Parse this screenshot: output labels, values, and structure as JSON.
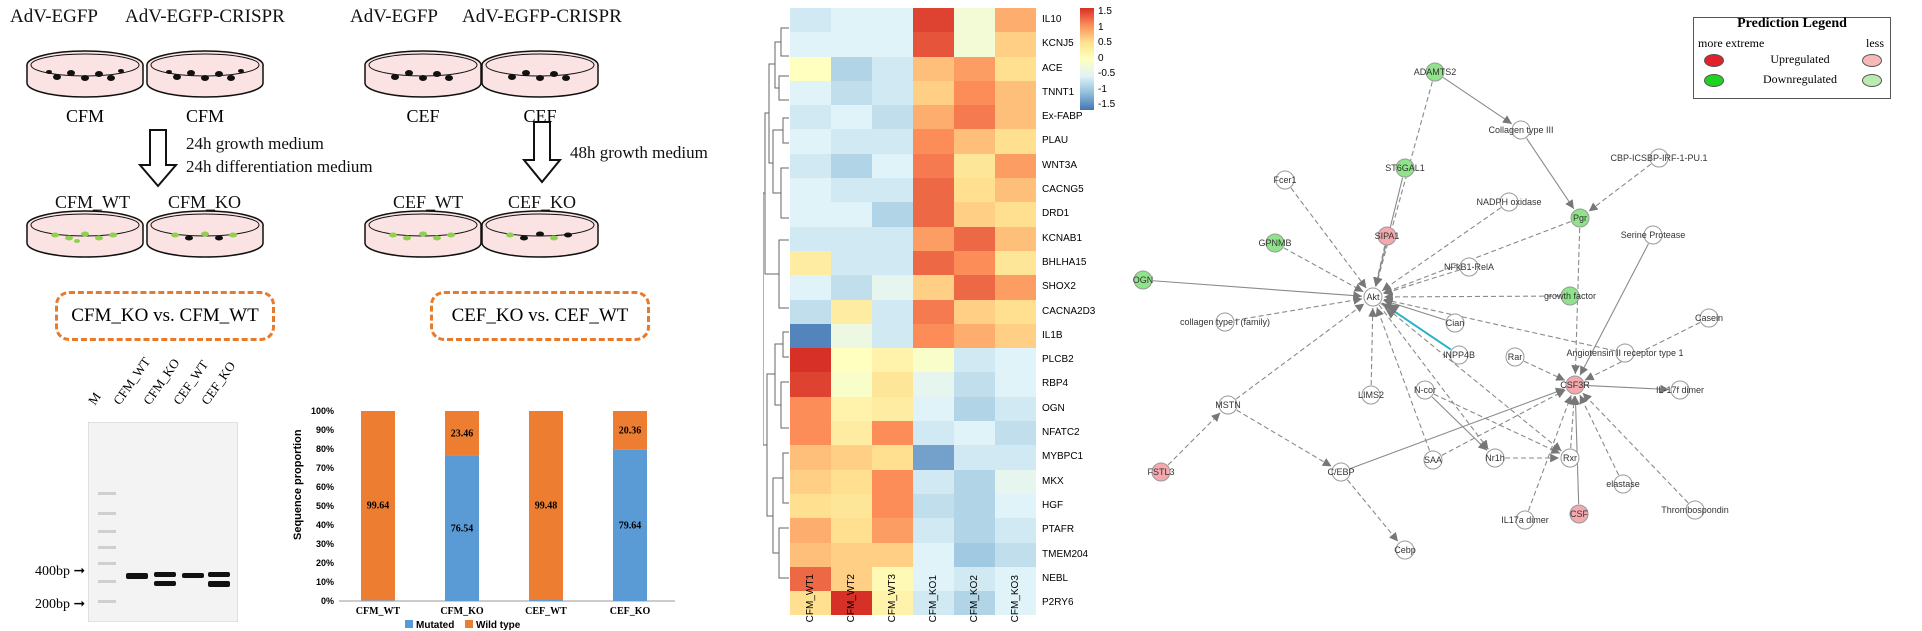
{
  "workflow": {
    "left": {
      "vec1": "AdV-EGFP",
      "vec2": "AdV-EGFP-CRISPR",
      "cell1": "CFM",
      "cell2": "CFM",
      "step": [
        "24h growth medium",
        "24h differentiation medium"
      ],
      "res1": "CFM_WT",
      "res2": "CFM_KO",
      "cmp": "CFM_KO vs. CFM_WT"
    },
    "right": {
      "vec1": "AdV-EGFP",
      "vec2": "AdV-EGFP-CRISPR",
      "cell1": "CEF",
      "cell2": "CEF",
      "step": [
        "48h growth medium"
      ],
      "res1": "CEF_WT",
      "res2": "CEF_KO",
      "cmp": "CEF_KO vs. CEF_WT"
    }
  },
  "gel": {
    "lanes": [
      "M",
      "CFM_WT",
      "CFM_KO",
      "CEF_WT",
      "CEF_KO"
    ],
    "marker_hi": "400bp",
    "marker_lo": "200bp"
  },
  "chart_data": {
    "type": "bar",
    "stacked": true,
    "categories": [
      "CFM_WT",
      "CFM_KO",
      "CEF_WT",
      "CEF_KO"
    ],
    "series": [
      {
        "name": "Mutated",
        "values": [
          0.36,
          76.54,
          0.52,
          79.64
        ],
        "color": "#5b9bd5"
      },
      {
        "name": "Wild type",
        "values": [
          99.64,
          23.46,
          99.48,
          20.36
        ],
        "color": "#ed7d31"
      }
    ],
    "ylabel": "Sequence proportion",
    "yticks": [
      "0%",
      "10%",
      "20%",
      "30%",
      "40%",
      "50%",
      "60%",
      "70%",
      "80%",
      "90%",
      "100%"
    ],
    "ylim": [
      0,
      100
    ],
    "legend": "bottom"
  },
  "heatmap": {
    "genes": [
      "IL10",
      "KCNJ5",
      "ACE",
      "TNNT1",
      "Ex-FABP",
      "PLAU",
      "WNT3A",
      "CACNG5",
      "DRD1",
      "KCNAB1",
      "BHLHA15",
      "SHOX2",
      "CACNA2D3",
      "IL1B",
      "PLCB2",
      "RBP4",
      "OGN",
      "NFATC2",
      "MYBPC1",
      "MKX",
      "HGF",
      "PTAFR",
      "TMEM204",
      "NEBL",
      "P2RY6"
    ],
    "samples": [
      "CFM_WT1",
      "CFM_WT2",
      "CFM_WT3",
      "CFM_KO1",
      "CFM_KO2",
      "CFM_KO3"
    ],
    "values": [
      [
        -0.6,
        -0.5,
        -0.5,
        1.4,
        -0.2,
        0.8
      ],
      [
        -0.5,
        -0.5,
        -0.5,
        1.3,
        -0.2,
        0.6
      ],
      [
        0.0,
        -0.8,
        -0.6,
        0.7,
        0.9,
        0.5
      ],
      [
        -0.5,
        -0.7,
        -0.6,
        0.6,
        1.0,
        0.7
      ],
      [
        -0.6,
        -0.5,
        -0.7,
        0.8,
        1.1,
        0.7
      ],
      [
        -0.5,
        -0.6,
        -0.6,
        1.0,
        0.7,
        0.5
      ],
      [
        -0.6,
        -0.8,
        -0.5,
        1.1,
        0.4,
        0.9
      ],
      [
        -0.5,
        -0.6,
        -0.6,
        1.2,
        0.5,
        0.7
      ],
      [
        -0.5,
        -0.5,
        -0.8,
        1.2,
        0.6,
        0.5
      ],
      [
        -0.6,
        -0.6,
        -0.6,
        0.9,
        1.2,
        0.7
      ],
      [
        0.3,
        -0.6,
        -0.6,
        1.2,
        1.0,
        0.4
      ],
      [
        -0.5,
        -0.7,
        -0.4,
        0.6,
        1.2,
        0.9
      ],
      [
        -0.7,
        0.3,
        -0.6,
        1.1,
        0.6,
        0.5
      ],
      [
        -1.4,
        -0.3,
        -0.6,
        1.0,
        0.8,
        0.6
      ],
      [
        1.5,
        0.0,
        0.2,
        -0.1,
        -0.6,
        -0.5
      ],
      [
        1.4,
        -0.1,
        0.4,
        -0.4,
        -0.7,
        -0.5
      ],
      [
        1.0,
        0.2,
        0.3,
        -0.5,
        -0.8,
        -0.6
      ],
      [
        1.0,
        0.3,
        1.0,
        -0.6,
        -0.5,
        -0.7
      ],
      [
        0.7,
        0.6,
        0.5,
        -1.2,
        -0.6,
        -0.6
      ],
      [
        0.6,
        0.5,
        1.0,
        -0.6,
        -0.8,
        -0.4
      ],
      [
        0.5,
        0.4,
        1.0,
        -0.7,
        -0.8,
        -0.5
      ],
      [
        0.8,
        0.5,
        0.9,
        -0.6,
        -0.8,
        -0.6
      ],
      [
        0.7,
        0.6,
        0.6,
        -0.5,
        -0.9,
        -0.7
      ],
      [
        1.2,
        0.6,
        0.1,
        -0.5,
        -0.6,
        -0.5
      ],
      [
        0.5,
        1.7,
        0.2,
        -0.6,
        -0.8,
        -0.5
      ]
    ],
    "scale": [
      "1.5",
      "1",
      "0.5",
      "0",
      "-0.5",
      "-1",
      "-1.5"
    ]
  },
  "legend": {
    "title": "Prediction Legend",
    "more": "more extreme",
    "less": "less",
    "up": "Upregulated",
    "down": "Downregulated"
  },
  "network": {
    "nodes": [
      {
        "label": "ADAMTS2",
        "status": "down"
      },
      {
        "label": "Collagen type III",
        "status": "none"
      },
      {
        "label": "CBP-ICSBP-IRF-1-PU.1",
        "status": "none"
      },
      {
        "label": "Fcer1",
        "status": "none"
      },
      {
        "label": "ST6GAL1",
        "status": "down"
      },
      {
        "label": "NADPH oxidase",
        "status": "none"
      },
      {
        "label": "Pgr",
        "status": "down"
      },
      {
        "label": "Serine Protease",
        "status": "none"
      },
      {
        "label": "GPNMB",
        "status": "down"
      },
      {
        "label": "SIPA1",
        "status": "up"
      },
      {
        "label": "NFkB1-RelA",
        "status": "none"
      },
      {
        "label": "OGN",
        "status": "down"
      },
      {
        "label": "Akt",
        "status": "none"
      },
      {
        "label": "growth factor",
        "status": "down"
      },
      {
        "label": "Casein",
        "status": "none"
      },
      {
        "label": "collagen type I (family)",
        "status": "none"
      },
      {
        "label": "Cian",
        "status": "none"
      },
      {
        "label": "INPP4B",
        "status": "none"
      },
      {
        "label": "Rar",
        "status": "none"
      },
      {
        "label": "Angiotensin II receptor type 1",
        "status": "none"
      },
      {
        "label": "LIMS2",
        "status": "none"
      },
      {
        "label": "CSF3R",
        "status": "up"
      },
      {
        "label": "IL-17f dimer",
        "status": "none"
      },
      {
        "label": "MSTN",
        "status": "none"
      },
      {
        "label": "N-cor",
        "status": "none"
      },
      {
        "label": "Nr1h",
        "status": "none"
      },
      {
        "label": "Rxr",
        "status": "none"
      },
      {
        "label": "SAA",
        "status": "none"
      },
      {
        "label": "C/EBP",
        "status": "none"
      },
      {
        "label": "FSTL3",
        "status": "up"
      },
      {
        "label": "elastase",
        "status": "none"
      },
      {
        "label": "IL17a dimer",
        "status": "none"
      },
      {
        "label": "CSF",
        "status": "up"
      },
      {
        "label": "Thrombospondin",
        "status": "none"
      },
      {
        "label": "Cebp",
        "status": "none"
      }
    ]
  }
}
